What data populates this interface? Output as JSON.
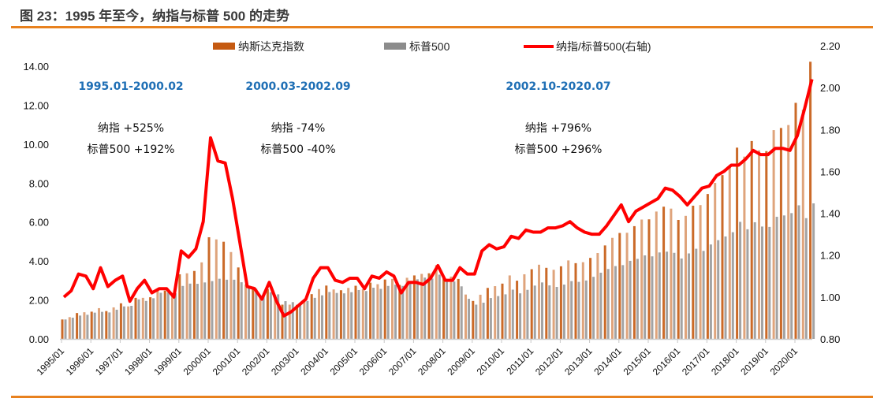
{
  "title": "图 23：1995 年至今，纳指与标普 500 的走势",
  "colors": {
    "nasdaq": "#C55A11",
    "sp500": "#8C8C8C",
    "ratio": "#FF0000",
    "annotation": "#1F6FB5",
    "rule": "#E8811E"
  },
  "chart_data": {
    "type": "bar+line",
    "legend_position": "top",
    "grid": false,
    "left_axis": {
      "ylim": [
        0,
        14
      ],
      "ticks": [
        "0.00",
        "2.00",
        "4.00",
        "6.00",
        "8.00",
        "10.00",
        "12.00",
        "14.00"
      ]
    },
    "right_axis": {
      "ylim": [
        0.8,
        2.2
      ],
      "ticks": [
        "0.80",
        "1.00",
        "1.20",
        "1.40",
        "1.60",
        "1.80",
        "2.00",
        "2.20"
      ]
    },
    "x_ticks": [
      "1995/01",
      "1996/01",
      "1997/01",
      "1998/01",
      "1999/01",
      "2000/01",
      "2001/01",
      "2002/01",
      "2003/01",
      "2004/01",
      "2005/01",
      "2006/01",
      "2007/01",
      "2008/01",
      "2009/01",
      "2010/01",
      "2011/01",
      "2012/01",
      "2013/01",
      "2014/01",
      "2015/01",
      "2016/01",
      "2017/01",
      "2018/01",
      "2019/01",
      "2020/01"
    ],
    "x_start": "1995/01",
    "x_step": "quarter",
    "series": [
      {
        "name": "纳斯达克指数",
        "type": "bar",
        "axis": "left",
        "values": [
          1.0,
          1.12,
          1.33,
          1.37,
          1.4,
          1.58,
          1.43,
          1.62,
          1.83,
          1.67,
          2.11,
          2.11,
          2.14,
          2.47,
          2.48,
          2.35,
          3.32,
          3.37,
          3.49,
          3.93,
          5.22,
          5.11,
          4.99,
          4.46,
          3.67,
          2.8,
          2.68,
          2.24,
          2.56,
          2.24,
          1.76,
          1.76,
          1.75,
          1.94,
          2.3,
          2.56,
          2.74,
          2.54,
          2.5,
          2.62,
          2.73,
          2.55,
          2.89,
          2.81,
          3.05,
          3.08,
          2.77,
          3.14,
          3.26,
          3.34,
          3.37,
          3.79,
          3.17,
          3.2,
          3.08,
          2.28,
          1.95,
          2.27,
          2.62,
          2.71,
          2.84,
          3.26,
          2.99,
          3.32,
          3.58,
          3.81,
          3.65,
          3.55,
          3.73,
          4.03,
          3.89,
          3.94,
          4.16,
          4.41,
          4.8,
          5.19,
          5.44,
          5.45,
          5.79,
          6.13,
          6.14,
          6.54,
          6.79,
          6.69,
          6.11,
          6.32,
          6.84,
          6.87,
          7.44,
          8.01,
          8.41,
          8.91,
          9.82,
          9.36,
          10.16,
          9.68,
          9.64,
          10.72,
          10.83,
          10.98,
          12.12,
          11.77,
          14.23
        ]
      },
      {
        "name": "标普500",
        "type": "bar",
        "axis": "left",
        "values": [
          1.0,
          1.09,
          1.2,
          1.24,
          1.35,
          1.39,
          1.36,
          1.5,
          1.67,
          1.7,
          2.03,
          1.95,
          2.09,
          2.37,
          2.39,
          2.34,
          2.72,
          2.84,
          2.83,
          2.9,
          2.97,
          3.09,
          3.04,
          3.04,
          2.91,
          2.66,
          2.58,
          2.26,
          2.4,
          2.29,
          1.94,
          1.89,
          1.82,
          1.95,
          2.11,
          2.24,
          2.41,
          2.36,
          2.34,
          2.4,
          2.51,
          2.46,
          2.63,
          2.57,
          2.72,
          2.79,
          2.72,
          2.93,
          3.06,
          3.15,
          3.1,
          3.3,
          2.93,
          2.95,
          2.7,
          2.06,
          1.76,
          1.86,
          2.1,
          2.2,
          2.29,
          2.53,
          2.34,
          2.52,
          2.74,
          2.9,
          2.75,
          2.67,
          2.79,
          2.97,
          2.93,
          3.0,
          3.19,
          3.4,
          3.59,
          3.74,
          3.79,
          4.01,
          4.11,
          4.29,
          4.24,
          4.44,
          4.48,
          4.42,
          4.13,
          4.39,
          4.63,
          4.52,
          4.85,
          5.07,
          5.26,
          5.48,
          6.01,
          5.63,
          5.99,
          5.77,
          5.75,
          6.27,
          6.34,
          6.46,
          6.86,
          6.2,
          6.96
        ]
      },
      {
        "name": "纳指/标普500(右轴)",
        "type": "line",
        "axis": "right",
        "values": [
          1.0,
          1.03,
          1.11,
          1.1,
          1.04,
          1.14,
          1.05,
          1.08,
          1.1,
          0.98,
          1.04,
          1.08,
          1.02,
          1.04,
          1.04,
          1.0,
          1.22,
          1.19,
          1.23,
          1.36,
          1.76,
          1.65,
          1.64,
          1.47,
          1.26,
          1.05,
          1.04,
          0.99,
          1.07,
          0.98,
          0.91,
          0.93,
          0.96,
          0.99,
          1.09,
          1.14,
          1.14,
          1.08,
          1.07,
          1.09,
          1.09,
          1.04,
          1.1,
          1.09,
          1.12,
          1.1,
          1.02,
          1.07,
          1.07,
          1.06,
          1.09,
          1.15,
          1.08,
          1.08,
          1.14,
          1.11,
          1.11,
          1.22,
          1.25,
          1.23,
          1.24,
          1.29,
          1.28,
          1.32,
          1.31,
          1.31,
          1.33,
          1.33,
          1.34,
          1.36,
          1.33,
          1.31,
          1.3,
          1.3,
          1.34,
          1.39,
          1.44,
          1.36,
          1.41,
          1.43,
          1.45,
          1.47,
          1.52,
          1.51,
          1.48,
          1.44,
          1.48,
          1.52,
          1.53,
          1.58,
          1.6,
          1.63,
          1.63,
          1.66,
          1.7,
          1.68,
          1.68,
          1.71,
          1.71,
          1.7,
          1.77,
          1.9,
          2.04
        ]
      }
    ],
    "annotations": [
      {
        "period": "1995.01-2000.02",
        "line1": "纳指  +525%",
        "line2": "标普500  +192%"
      },
      {
        "period": "2000.03-2002.09",
        "line1": "纳指  -74%",
        "line2": "标普500  -40%"
      },
      {
        "period": "2002.10-2020.07",
        "line1": "纳指  +796%",
        "line2": "标普500  +296%"
      }
    ]
  }
}
